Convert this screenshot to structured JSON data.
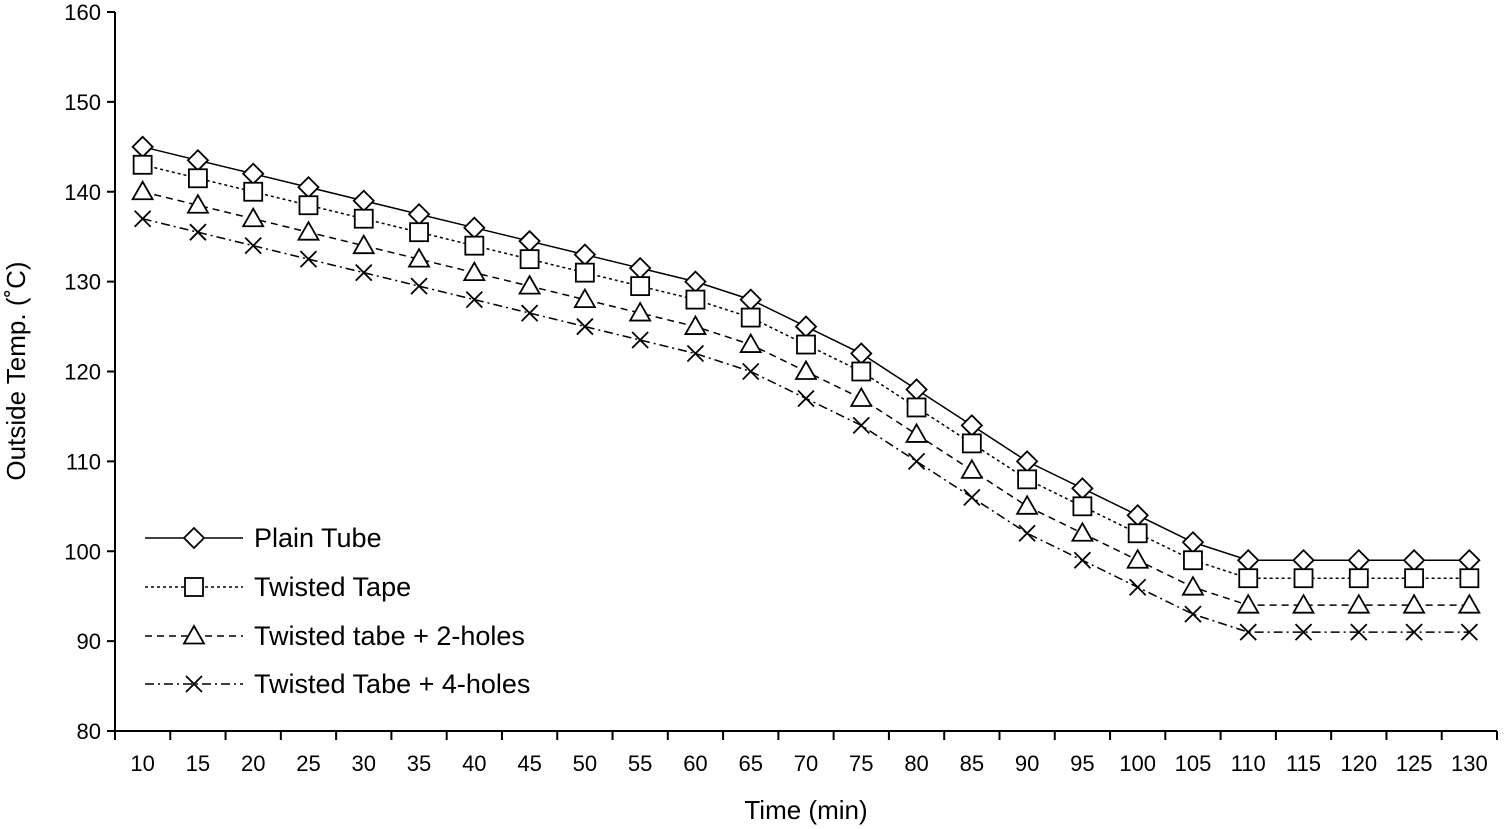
{
  "chart_data": {
    "type": "line",
    "title": "",
    "xlabel": "Time (min)",
    "ylabel": "Outside Temp. (˚C)",
    "ylim": [
      80,
      160
    ],
    "yticks": [
      80,
      90,
      100,
      110,
      120,
      130,
      140,
      150,
      160
    ],
    "grid": false,
    "legend_position": "bottom-left",
    "categories": [
      10,
      15,
      20,
      25,
      30,
      35,
      40,
      45,
      50,
      55,
      60,
      65,
      70,
      75,
      80,
      85,
      90,
      95,
      100,
      105,
      110,
      115,
      120,
      125,
      130
    ],
    "series": [
      {
        "name": "Plain Tube",
        "marker": "diamond",
        "line": "solid",
        "values": [
          145,
          143.5,
          142,
          140.5,
          139,
          137.5,
          136,
          134.5,
          133,
          131.5,
          130,
          128,
          125,
          122,
          118,
          114,
          110,
          107,
          104,
          101,
          99,
          99,
          99,
          99,
          99
        ]
      },
      {
        "name": "Twisted Tape",
        "marker": "square",
        "line": "dotted",
        "values": [
          143,
          141.5,
          140,
          138.5,
          137,
          135.5,
          134,
          132.5,
          131,
          129.5,
          128,
          126,
          123,
          120,
          116,
          112,
          108,
          105,
          102,
          99,
          97,
          97,
          97,
          97,
          97
        ]
      },
      {
        "name": "Twisted tabe + 2-holes",
        "marker": "triangle",
        "line": "dashed",
        "values": [
          140,
          138.5,
          137,
          135.5,
          134,
          132.5,
          131,
          129.5,
          128,
          126.5,
          125,
          123,
          120,
          117,
          113,
          109,
          105,
          102,
          99,
          96,
          94,
          94,
          94,
          94,
          94
        ]
      },
      {
        "name": "Twisted Tabe + 4-holes",
        "marker": "x",
        "line": "dashdot",
        "values": [
          137,
          135.5,
          134,
          132.5,
          131,
          129.5,
          128,
          126.5,
          125,
          123.5,
          122,
          120,
          117,
          114,
          110,
          106,
          102,
          99,
          96,
          93,
          91,
          91,
          91,
          91,
          91
        ]
      }
    ]
  }
}
